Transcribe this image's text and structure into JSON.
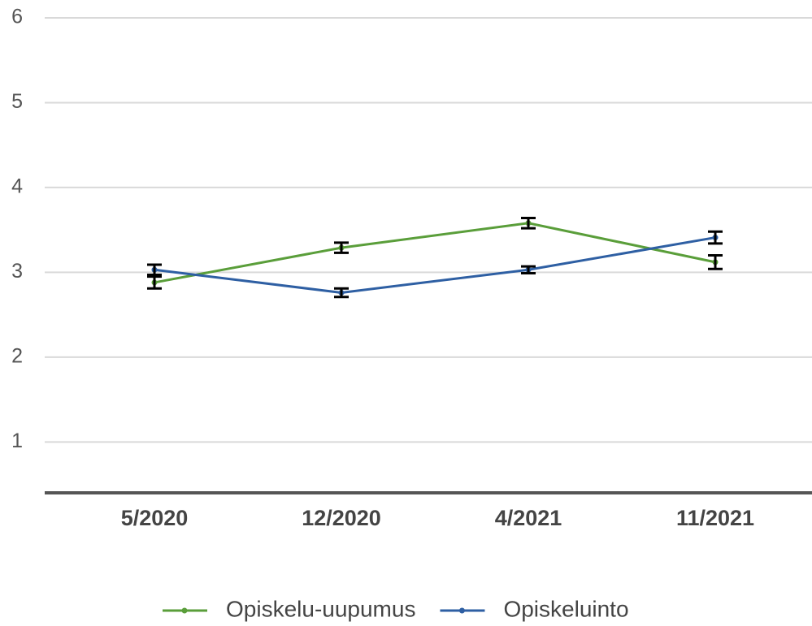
{
  "chart_data": {
    "type": "line",
    "categories": [
      "5/2020",
      "12/2020",
      "4/2021",
      "11/2021"
    ],
    "series": [
      {
        "name": "Opiskelu-uupumus",
        "color": "#5a9e3a",
        "values": [
          2.88,
          3.29,
          3.58,
          3.12
        ],
        "errors": [
          0.07,
          0.06,
          0.06,
          0.08
        ]
      },
      {
        "name": "Opiskeluinto",
        "color": "#2e5fa3",
        "values": [
          3.03,
          2.76,
          3.03,
          3.41
        ],
        "errors": [
          0.06,
          0.05,
          0.04,
          0.07
        ]
      }
    ],
    "error_bar_color": "#000000",
    "ylim": [
      0.4,
      6
    ],
    "yticks": [
      1,
      2,
      3,
      4,
      5,
      6
    ],
    "grid": true,
    "legend": "bottom"
  }
}
